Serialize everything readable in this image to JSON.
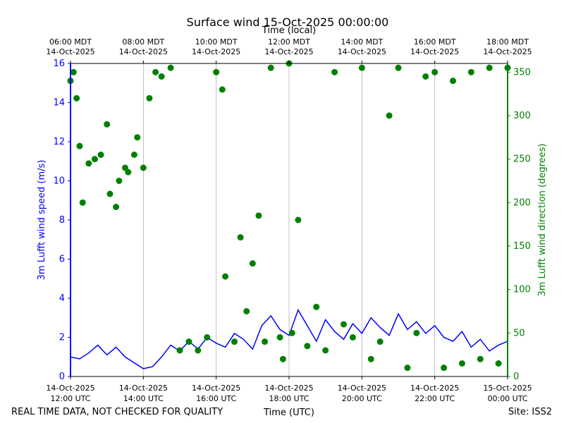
{
  "chart_data": {
    "type": "line",
    "title": "Surface wind 15-Oct-2025 00:00:00",
    "xlabel": "Time (UTC)",
    "xlabel_top": "Time (local)",
    "ylabel": "3m Lufft wind speed (m/s)",
    "ylabel_right": "3m Lufft wind direction (degrees)",
    "footer_left": "REAL TIME DATA, NOT CHECKED FOR QUALITY",
    "footer_right": "Site: ISS2",
    "xlim": [
      "2025-10-14T12:00Z",
      "2025-10-15T00:00Z"
    ],
    "ylim": [
      0,
      16
    ],
    "ylim_right": [
      0,
      360
    ],
    "grid": "vertical",
    "x_ticks_bottom": [
      {
        "t": "2025-10-14T12:00Z",
        "date": "14-Oct-2025",
        "time": "12:00 UTC"
      },
      {
        "t": "2025-10-14T14:00Z",
        "date": "14-Oct-2025",
        "time": "14:00 UTC"
      },
      {
        "t": "2025-10-14T16:00Z",
        "date": "14-Oct-2025",
        "time": "16:00 UTC"
      },
      {
        "t": "2025-10-14T18:00Z",
        "date": "14-Oct-2025",
        "time": "18:00 UTC"
      },
      {
        "t": "2025-10-14T20:00Z",
        "date": "14-Oct-2025",
        "time": "20:00 UTC"
      },
      {
        "t": "2025-10-14T22:00Z",
        "date": "14-Oct-2025",
        "time": "22:00 UTC"
      },
      {
        "t": "2025-10-15T00:00Z",
        "date": "15-Oct-2025",
        "time": "00:00 UTC"
      }
    ],
    "x_ticks_top": [
      {
        "t": "2025-10-14T12:00Z",
        "time": "06:00 MDT",
        "date": "14-Oct-2025"
      },
      {
        "t": "2025-10-14T14:00Z",
        "time": "08:00 MDT",
        "date": "14-Oct-2025"
      },
      {
        "t": "2025-10-14T16:00Z",
        "time": "10:00 MDT",
        "date": "14-Oct-2025"
      },
      {
        "t": "2025-10-14T18:00Z",
        "time": "12:00 MDT",
        "date": "14-Oct-2025"
      },
      {
        "t": "2025-10-14T20:00Z",
        "time": "14:00 MDT",
        "date": "14-Oct-2025"
      },
      {
        "t": "2025-10-14T22:00Z",
        "time": "16:00 MDT",
        "date": "14-Oct-2025"
      },
      {
        "t": "2025-10-15T00:00Z",
        "time": "18:00 MDT",
        "date": "14-Oct-2025"
      }
    ],
    "y_ticks_left": [
      0,
      2,
      4,
      6,
      8,
      10,
      12,
      14,
      16
    ],
    "y_ticks_right": [
      0,
      50,
      100,
      150,
      200,
      250,
      300,
      350
    ],
    "series": [
      {
        "axis": "left",
        "kind": "line",
        "color": "#0000ff",
        "x": [
          "2025-10-14T12:00Z",
          "2025-10-14T12:15Z",
          "2025-10-14T12:30Z",
          "2025-10-14T12:45Z",
          "2025-10-14T13:00Z",
          "2025-10-14T13:15Z",
          "2025-10-14T13:30Z",
          "2025-10-14T13:45Z",
          "2025-10-14T14:00Z",
          "2025-10-14T14:15Z",
          "2025-10-14T14:30Z",
          "2025-10-14T14:45Z",
          "2025-10-14T15:00Z",
          "2025-10-14T15:15Z",
          "2025-10-14T15:30Z",
          "2025-10-14T15:45Z",
          "2025-10-14T16:00Z",
          "2025-10-14T16:15Z",
          "2025-10-14T16:30Z",
          "2025-10-14T16:45Z",
          "2025-10-14T17:00Z",
          "2025-10-14T17:15Z",
          "2025-10-14T17:30Z",
          "2025-10-14T17:45Z",
          "2025-10-14T18:00Z",
          "2025-10-14T18:15Z",
          "2025-10-14T18:30Z",
          "2025-10-14T18:45Z",
          "2025-10-14T19:00Z",
          "2025-10-14T19:15Z",
          "2025-10-14T19:30Z",
          "2025-10-14T19:45Z",
          "2025-10-14T20:00Z",
          "2025-10-14T20:15Z",
          "2025-10-14T20:30Z",
          "2025-10-14T20:45Z",
          "2025-10-14T21:00Z",
          "2025-10-14T21:15Z",
          "2025-10-14T21:30Z",
          "2025-10-14T21:45Z",
          "2025-10-14T22:00Z",
          "2025-10-14T22:15Z",
          "2025-10-14T22:30Z",
          "2025-10-14T22:45Z",
          "2025-10-14T23:00Z",
          "2025-10-14T23:15Z",
          "2025-10-14T23:30Z",
          "2025-10-14T23:45Z",
          "2025-10-15T00:00Z"
        ],
        "y": [
          1.0,
          0.9,
          1.2,
          1.6,
          1.1,
          1.5,
          1.0,
          0.7,
          0.4,
          0.5,
          1.0,
          1.6,
          1.3,
          1.8,
          1.4,
          2.0,
          1.7,
          1.5,
          2.2,
          1.9,
          1.4,
          2.6,
          3.1,
          2.4,
          2.1,
          3.4,
          2.6,
          1.8,
          2.9,
          2.3,
          1.9,
          2.7,
          2.2,
          3.0,
          2.5,
          2.1,
          3.2,
          2.4,
          2.8,
          2.2,
          2.6,
          2.0,
          1.8,
          2.3,
          1.5,
          1.9,
          1.3,
          1.6,
          1.8
        ]
      },
      {
        "axis": "right",
        "kind": "points",
        "color": "#008000",
        "x": [
          "2025-10-14T12:00Z",
          "2025-10-14T12:05Z",
          "2025-10-14T12:10Z",
          "2025-10-14T12:15Z",
          "2025-10-14T12:20Z",
          "2025-10-14T12:30Z",
          "2025-10-14T12:40Z",
          "2025-10-14T12:50Z",
          "2025-10-14T13:00Z",
          "2025-10-14T13:05Z",
          "2025-10-14T13:15Z",
          "2025-10-14T13:20Z",
          "2025-10-14T13:30Z",
          "2025-10-14T13:35Z",
          "2025-10-14T13:45Z",
          "2025-10-14T13:50Z",
          "2025-10-14T14:00Z",
          "2025-10-14T14:10Z",
          "2025-10-14T14:20Z",
          "2025-10-14T14:30Z",
          "2025-10-14T14:45Z",
          "2025-10-14T15:00Z",
          "2025-10-14T15:15Z",
          "2025-10-14T15:30Z",
          "2025-10-14T15:45Z",
          "2025-10-14T16:00Z",
          "2025-10-14T16:10Z",
          "2025-10-14T16:15Z",
          "2025-10-14T16:30Z",
          "2025-10-14T16:40Z",
          "2025-10-14T16:50Z",
          "2025-10-14T17:00Z",
          "2025-10-14T17:10Z",
          "2025-10-14T17:20Z",
          "2025-10-14T17:30Z",
          "2025-10-14T17:45Z",
          "2025-10-14T17:50Z",
          "2025-10-14T18:00Z",
          "2025-10-14T18:05Z",
          "2025-10-14T18:15Z",
          "2025-10-14T18:30Z",
          "2025-10-14T18:45Z",
          "2025-10-14T19:00Z",
          "2025-10-14T19:15Z",
          "2025-10-14T19:30Z",
          "2025-10-14T19:45Z",
          "2025-10-14T20:00Z",
          "2025-10-14T20:15Z",
          "2025-10-14T20:30Z",
          "2025-10-14T20:45Z",
          "2025-10-14T21:00Z",
          "2025-10-14T21:15Z",
          "2025-10-14T21:30Z",
          "2025-10-14T21:45Z",
          "2025-10-14T22:00Z",
          "2025-10-14T22:15Z",
          "2025-10-14T22:30Z",
          "2025-10-14T22:45Z",
          "2025-10-14T23:00Z",
          "2025-10-14T23:15Z",
          "2025-10-14T23:30Z",
          "2025-10-14T23:45Z",
          "2025-10-15T00:00Z"
        ],
        "y": [
          340,
          350,
          320,
          265,
          200,
          245,
          250,
          255,
          290,
          210,
          195,
          225,
          240,
          235,
          255,
          275,
          240,
          320,
          350,
          345,
          355,
          30,
          40,
          30,
          45,
          350,
          330,
          115,
          40,
          160,
          75,
          130,
          185,
          40,
          355,
          45,
          20,
          360,
          50,
          180,
          35,
          80,
          30,
          350,
          60,
          45,
          355,
          20,
          40,
          300,
          355,
          10,
          50,
          345,
          350,
          10,
          340,
          15,
          350,
          20,
          355,
          15,
          355
        ]
      }
    ]
  }
}
